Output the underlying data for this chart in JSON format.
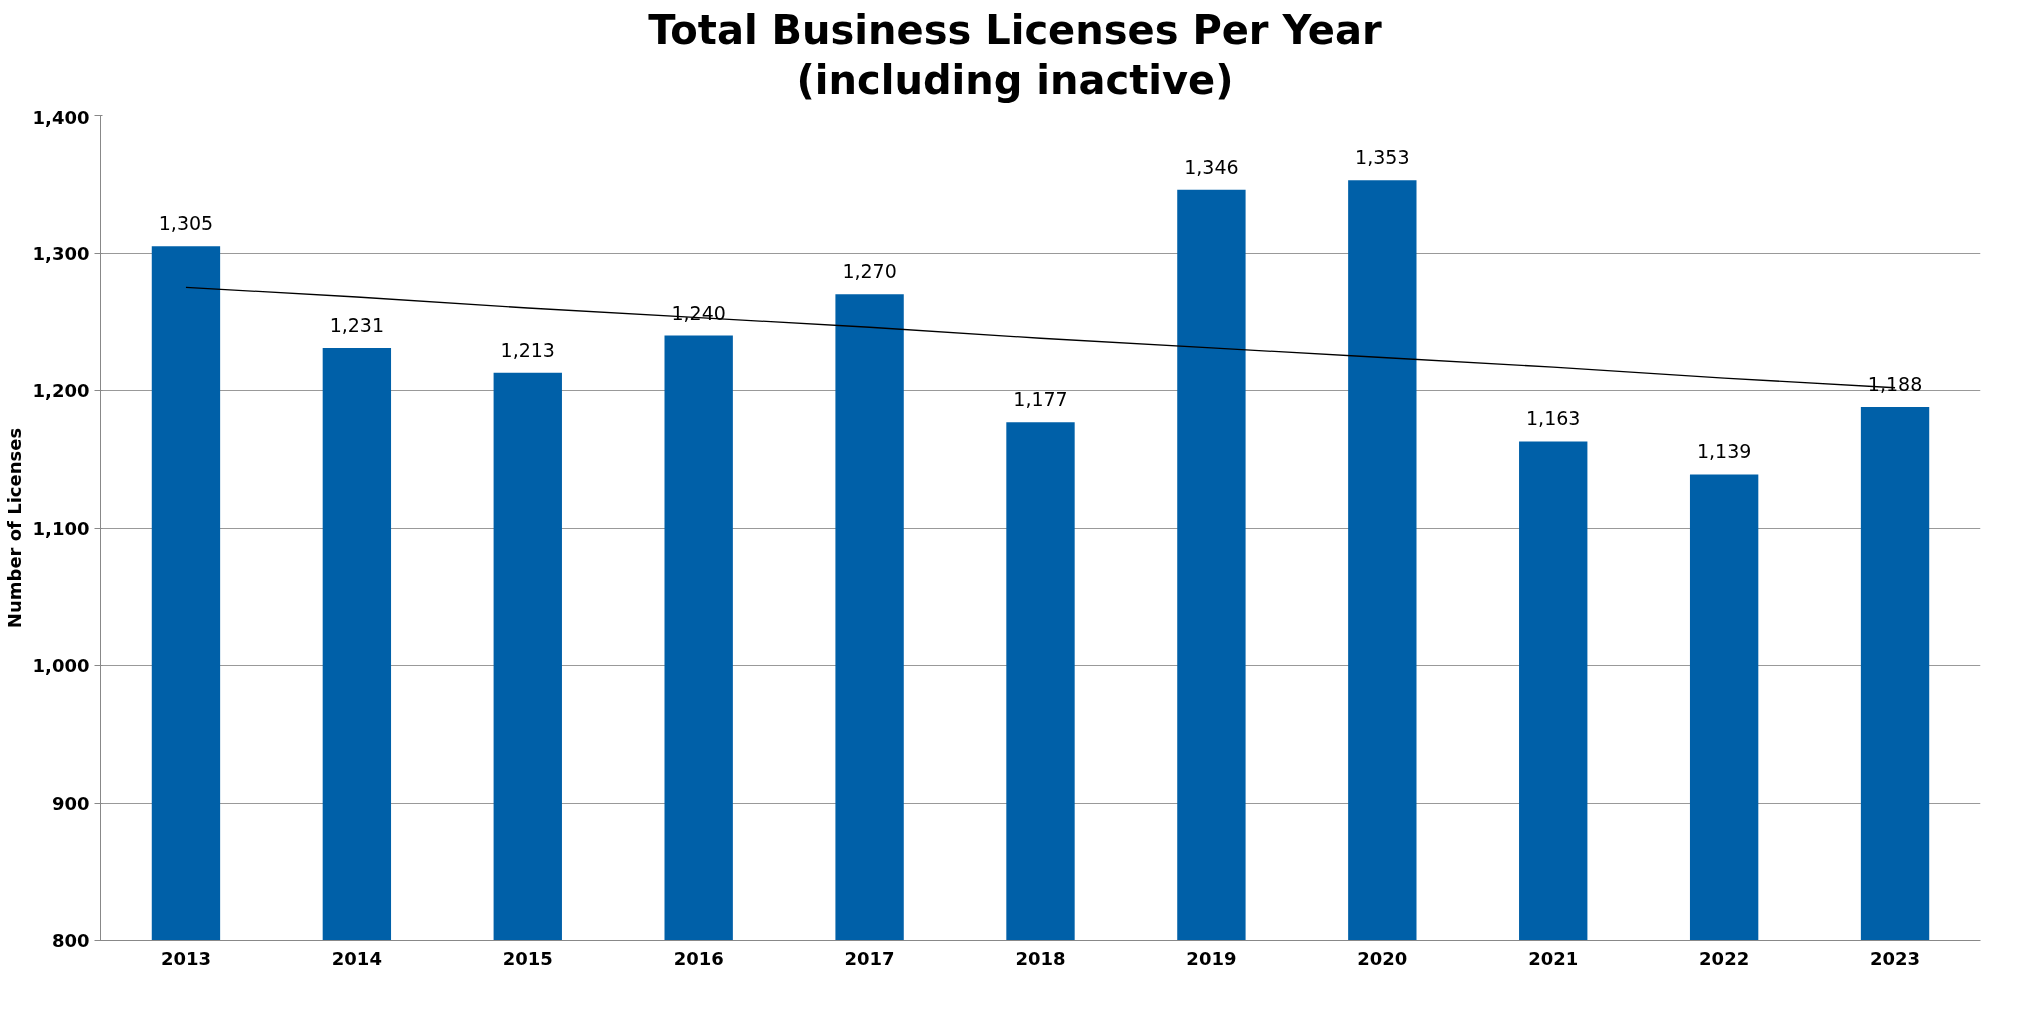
{
  "chart_data": {
    "type": "bar",
    "title": "Total Business Licenses Per Year\n(including inactive)",
    "ylabel": "Number of Licenses",
    "categories": [
      "2013",
      "2014",
      "2015",
      "2016",
      "2017",
      "2018",
      "2019",
      "2020",
      "2021",
      "2022",
      "2023"
    ],
    "series": [
      {
        "color": "#0060a8",
        "values": [
          1305,
          1231,
          1213,
          1240,
          1270,
          1177,
          1346,
          1353,
          1163,
          1139,
          1188
        ],
        "value_labels": [
          "1,305",
          "1,231",
          "1,213",
          "1,240",
          "1,270",
          "1,177",
          "1,346",
          "1,353",
          "1,163",
          "1,139",
          "1,188"
        ]
      },
      {
        "type": "line",
        "color": "#000000",
        "values": [
          1275,
          1268,
          1260,
          1253,
          1246,
          1238,
          1231,
          1224,
          1217,
          1209,
          1202
        ]
      }
    ],
    "ylim": [
      800,
      1400
    ],
    "yticks": [
      {
        "value": 800,
        "label": "800"
      },
      {
        "value": 900,
        "label": "900"
      },
      {
        "value": 1000,
        "label": "1,000"
      },
      {
        "value": 1100,
        "label": "1,100"
      },
      {
        "value": 1200,
        "label": "1,200"
      },
      {
        "value": 1300,
        "label": "1,300"
      },
      {
        "value": 1400,
        "label": "1,400"
      }
    ],
    "grid": "y"
  }
}
